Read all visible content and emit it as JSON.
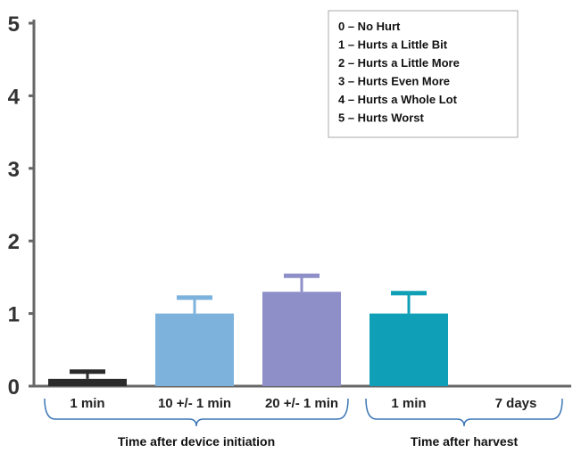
{
  "chart_data": {
    "type": "bar",
    "categories": [
      "1 min",
      "10 +/- 1 min",
      "20 +/- 1 min",
      "1 min",
      "7 days"
    ],
    "values": [
      0.1,
      1.0,
      1.3,
      1.0,
      0
    ],
    "error_upper": [
      0.2,
      1.22,
      1.52,
      1.28,
      0
    ],
    "colors": [
      "#2b2b2b",
      "#7db2dc",
      "#8e8fc9",
      "#0f9fb6",
      "#ffffff"
    ],
    "ylim": [
      0,
      5
    ],
    "yticks": [
      "0",
      "1",
      "2",
      "3",
      "4",
      "5"
    ],
    "title": "",
    "xlabel": "",
    "ylabel": "",
    "groups": [
      {
        "label": "Time after device initiation",
        "categories": [
          0,
          1,
          2
        ]
      },
      {
        "label": "Time after harvest",
        "categories": [
          3,
          4
        ]
      }
    ],
    "legend": {
      "position": "top-right",
      "items": [
        "0 – No Hurt",
        "1 – Hurts a Little Bit",
        "2 – Hurts a Little More",
        "3 – Hurts Even More",
        "4 – Hurts a Whole Lot",
        "5 – Hurts Worst"
      ]
    },
    "axis_color": "#666666",
    "bracket_color": "#3a76b5",
    "grid": false
  }
}
